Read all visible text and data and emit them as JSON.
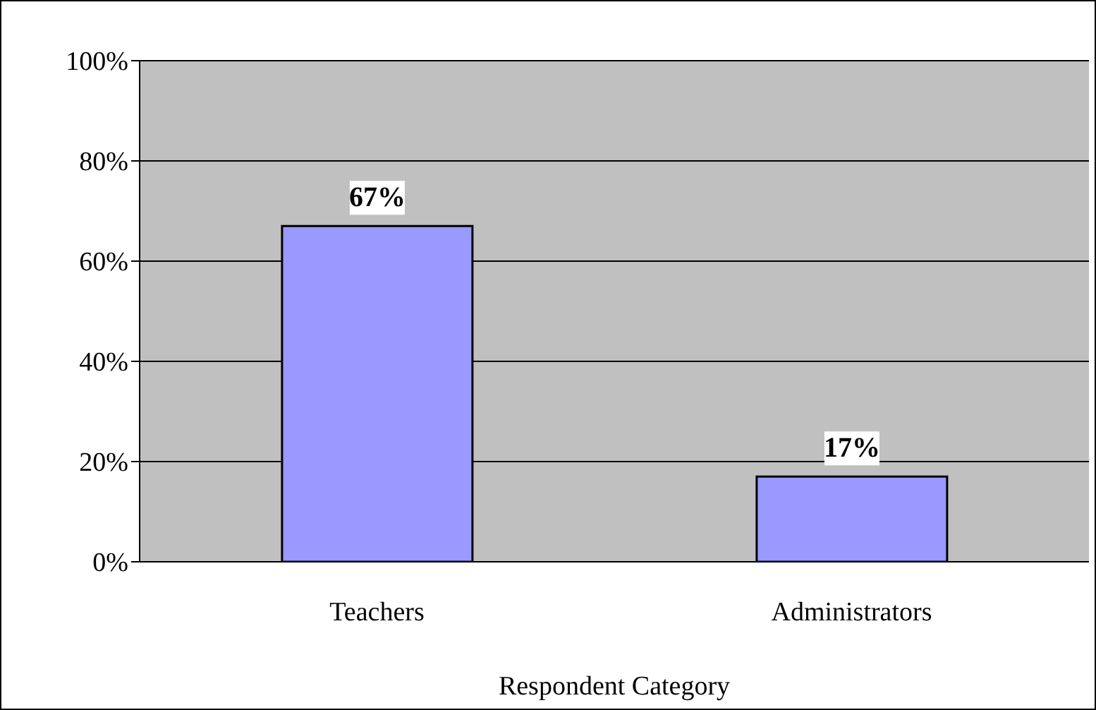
{
  "chart_data": {
    "type": "bar",
    "xlabel": "Respondent Category",
    "categories": [
      "Teachers",
      "Administrators"
    ],
    "values": [
      67,
      17
    ],
    "value_labels": [
      "67%",
      "17%"
    ],
    "color": "#9999ff",
    "ylim": [
      0,
      100
    ],
    "yticks": [
      {
        "value": 0,
        "label": "0%"
      },
      {
        "value": 20,
        "label": "20%"
      },
      {
        "value": 40,
        "label": "40%"
      },
      {
        "value": 60,
        "label": "60%"
      },
      {
        "value": 80,
        "label": "80%"
      },
      {
        "value": 100,
        "label": "100%"
      }
    ],
    "grid": "y",
    "legend": false
  }
}
